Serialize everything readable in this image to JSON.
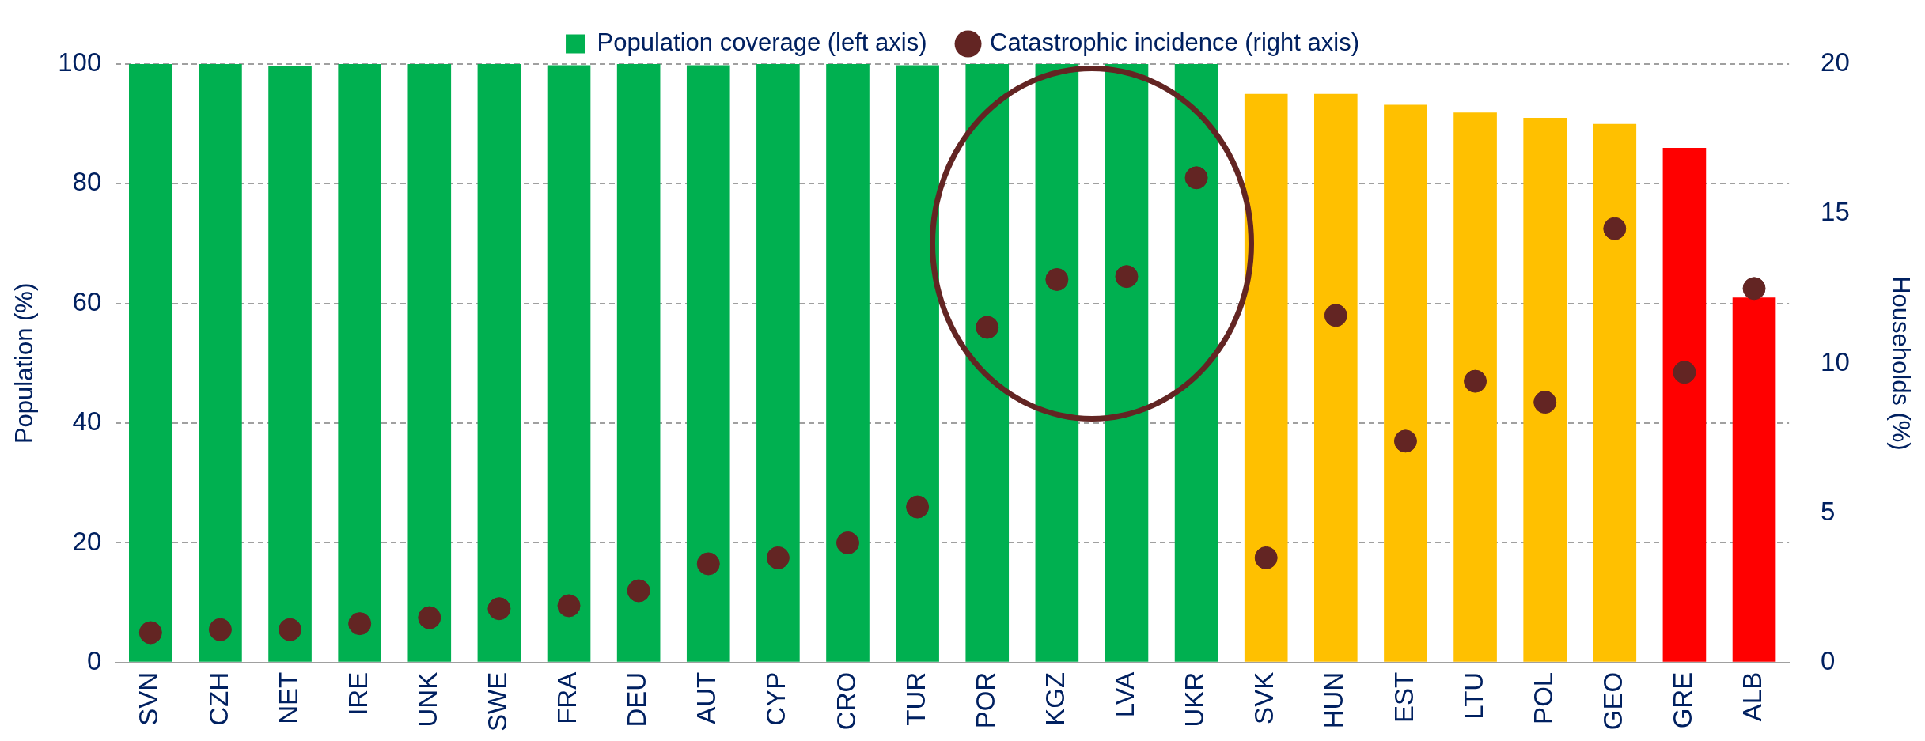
{
  "chart_data": {
    "type": "bar",
    "ylabel": "Population (%)",
    "y2label": "Households (%)",
    "categories": [
      "SVN",
      "CZH",
      "NET",
      "IRE",
      "UNK",
      "SWE",
      "FRA",
      "DEU",
      "AUT",
      "CYP",
      "CRO",
      "TUR",
      "POR",
      "KGZ",
      "LVA",
      "UKR",
      "SVK",
      "HUN",
      "EST",
      "LTU",
      "POL",
      "GEO",
      "GRE",
      "ALB"
    ],
    "series": [
      {
        "name": "Population coverage (left axis)",
        "color": "#00b050",
        "colors": [
          "#00b050",
          "#00b050",
          "#00b050",
          "#00b050",
          "#00b050",
          "#00b050",
          "#00b050",
          "#00b050",
          "#00b050",
          "#00b050",
          "#00b050",
          "#00b050",
          "#00b050",
          "#00b050",
          "#00b050",
          "#00b050",
          "#ffc000",
          "#ffc000",
          "#ffc000",
          "#ffc000",
          "#ffc000",
          "#ffc000",
          "#ff0000",
          "#ff0000"
        ],
        "values": [
          100,
          100,
          99.7,
          100,
          100,
          100,
          99.8,
          100,
          99.8,
          100,
          100,
          99.8,
          100,
          100,
          100,
          100,
          95,
          95,
          93.2,
          91.9,
          91,
          90,
          86,
          61
        ]
      },
      {
        "name": "Catastrophic incidence (right axis)",
        "type": "scatter",
        "axis": "y2",
        "color": "#632523",
        "marker": "circle",
        "x": [
          "SVN",
          "CZH",
          "NET",
          "IRE",
          "UNK",
          "SWE",
          "FRA",
          "DEU",
          "AUT",
          "CYP",
          "CRO",
          "TUR",
          "POR",
          "KGZ",
          "LVA",
          "UKR",
          "SVK",
          "HUN",
          "EST",
          "LTU",
          "POL",
          "GEO",
          "GRE",
          "ALB"
        ],
        "values": [
          1.0,
          1.1,
          1.1,
          1.3,
          1.5,
          1.8,
          1.9,
          2.4,
          3.3,
          3.5,
          4.0,
          5.2,
          11.2,
          12.8,
          12.9,
          16.2,
          3.5,
          11.6,
          7.4,
          9.4,
          8.7,
          14.5,
          9.7,
          12.5
        ]
      }
    ],
    "ylim": [
      0,
      100
    ],
    "yticks": [
      0,
      20,
      40,
      60,
      80,
      100
    ],
    "y2lim": [
      0,
      20
    ],
    "y2ticks": [
      0,
      5,
      10,
      15,
      20
    ],
    "grid": "y",
    "legend": "top"
  }
}
